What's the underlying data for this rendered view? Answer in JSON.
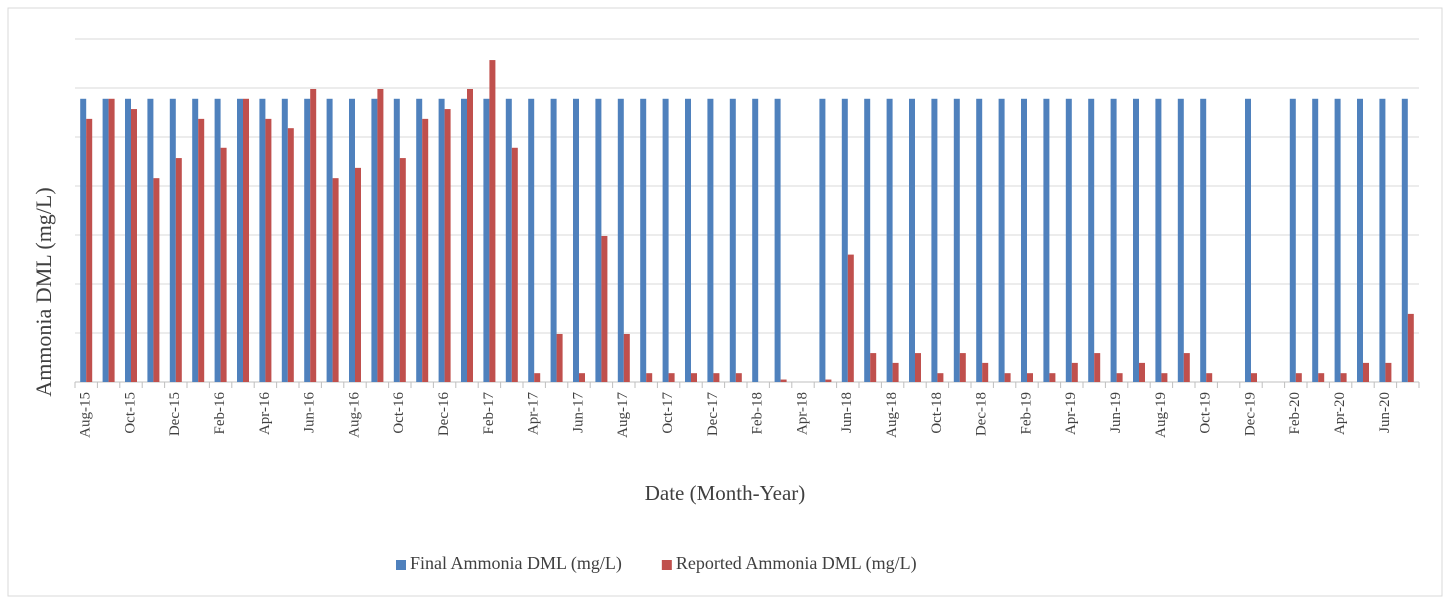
{
  "chart_data": {
    "type": "bar",
    "x_label": "Date (Month-Year)",
    "y_label": "Ammonia DML (mg/L)",
    "categories": [
      "Aug-15",
      null,
      "Oct-15",
      null,
      "Dec-15",
      null,
      "Feb-16",
      null,
      "Apr-16",
      null,
      "Jun-16",
      null,
      "Aug-16",
      null,
      "Oct-16",
      null,
      "Dec-16",
      null,
      "Feb-17",
      null,
      "Apr-17",
      null,
      "Jun-17",
      null,
      "Aug-17",
      null,
      "Oct-17",
      null,
      "Dec-17",
      null,
      "Feb-18",
      null,
      "Apr-18",
      null,
      "Jun-18",
      null,
      "Aug-18",
      null,
      "Oct-18",
      null,
      "Dec-18",
      null,
      "Feb-19",
      null,
      "Apr-19",
      null,
      "Jun-19",
      null,
      "Aug-19",
      null,
      "Oct-19",
      null,
      "Dec-19",
      null,
      "Feb-20",
      null,
      "Apr-20",
      null,
      "Jun-20",
      null
    ],
    "series": [
      {
        "name": "Final Ammonia DML (mg/L)",
        "color": "#4f81bd",
        "values": [
          5.78,
          5.78,
          5.78,
          5.78,
          5.78,
          5.78,
          5.78,
          5.78,
          5.78,
          5.78,
          5.78,
          5.78,
          5.78,
          5.78,
          5.78,
          5.78,
          5.78,
          5.78,
          5.78,
          5.78,
          5.78,
          5.78,
          5.78,
          5.78,
          5.78,
          5.78,
          5.78,
          5.78,
          5.78,
          5.78,
          5.78,
          5.78,
          null,
          5.78,
          5.78,
          5.78,
          5.78,
          5.78,
          5.78,
          5.78,
          5.78,
          5.78,
          5.78,
          5.78,
          5.78,
          5.78,
          5.78,
          5.78,
          5.78,
          5.78,
          5.78,
          null,
          5.78,
          null,
          5.78,
          5.78,
          5.78,
          5.78,
          5.78,
          5.78
        ]
      },
      {
        "name": "Reported Ammonia DML (mg/L)",
        "color": "#c0504d",
        "values": [
          5.37,
          5.78,
          5.57,
          4.16,
          4.57,
          5.37,
          4.78,
          5.78,
          5.37,
          5.18,
          5.98,
          4.16,
          4.37,
          5.98,
          4.57,
          5.37,
          5.57,
          5.98,
          6.57,
          4.78,
          0.18,
          0.98,
          0.18,
          2.98,
          0.98,
          0.18,
          0.18,
          0.18,
          0.18,
          0.18,
          null,
          0.05,
          null,
          0.05,
          2.6,
          0.59,
          0.39,
          0.59,
          0.18,
          0.59,
          0.39,
          0.18,
          0.18,
          0.18,
          0.39,
          0.59,
          0.18,
          0.39,
          0.18,
          0.59,
          0.18,
          null,
          0.18,
          null,
          0.18,
          0.18,
          0.18,
          0.39,
          0.39,
          1.39
        ]
      }
    ],
    "ylim": [
      0,
      7
    ],
    "gridlines": [
      0,
      1,
      2,
      3,
      4,
      5,
      6,
      7
    ],
    "grid": true,
    "legend": "bottom"
  }
}
